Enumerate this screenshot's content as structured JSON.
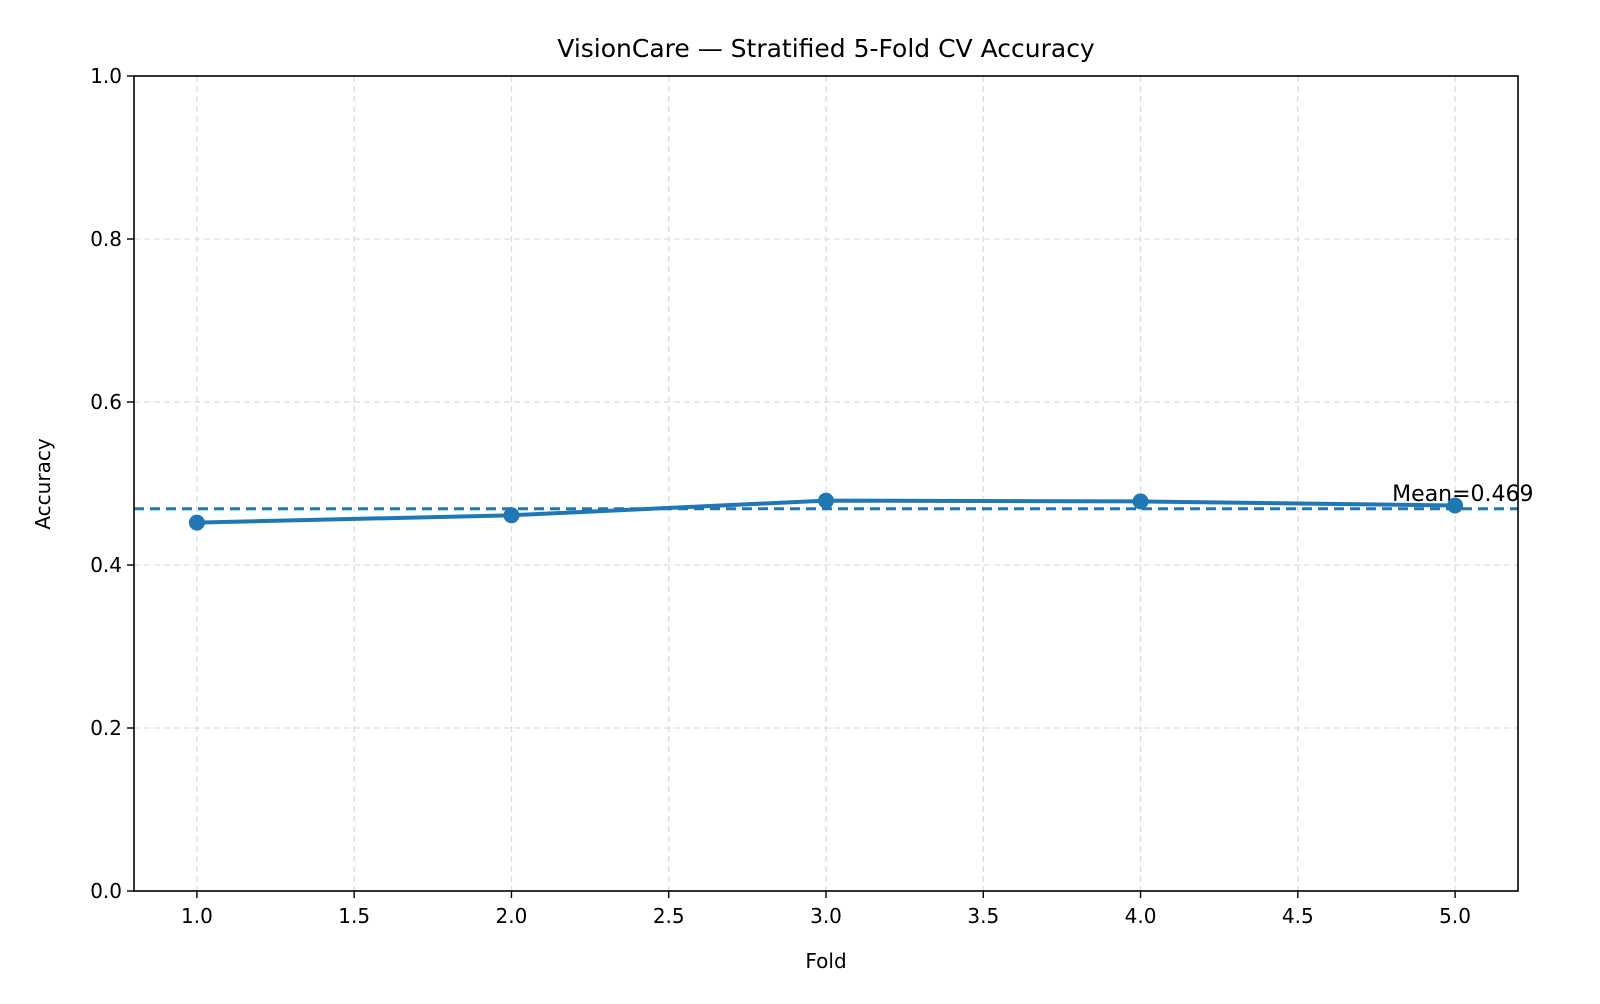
{
  "chart_data": {
    "type": "line",
    "title": "VisionCare — Stratified 5-Fold CV Accuracy",
    "xlabel": "Fold",
    "ylabel": "Accuracy",
    "xlim": [
      0.8,
      5.2
    ],
    "ylim": [
      0.0,
      1.0
    ],
    "xticks": [
      1.0,
      1.5,
      2.0,
      2.5,
      3.0,
      3.5,
      4.0,
      4.5,
      5.0
    ],
    "xtick_labels": [
      "1.0",
      "1.5",
      "2.0",
      "2.5",
      "3.0",
      "3.5",
      "4.0",
      "4.5",
      "5.0"
    ],
    "yticks": [
      0.0,
      0.2,
      0.4,
      0.6,
      0.8,
      1.0
    ],
    "ytick_labels": [
      "0.0",
      "0.2",
      "0.4",
      "0.6",
      "0.8",
      "1.0"
    ],
    "grid": true,
    "series": [
      {
        "x": [
          1,
          2,
          3,
          4,
          5
        ],
        "y": [
          0.452,
          0.461,
          0.479,
          0.478,
          0.473
        ],
        "color": "#1f77b4"
      }
    ],
    "reference_line": {
      "y": 0.469,
      "style": "dashed",
      "color": "#1f77b4",
      "label": "Mean=0.469"
    }
  }
}
